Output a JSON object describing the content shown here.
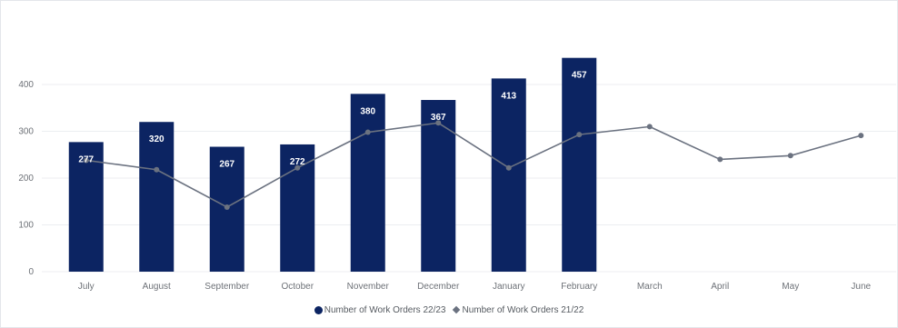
{
  "chart_data": {
    "type": "bar",
    "title": "",
    "categories": [
      "July",
      "August",
      "September",
      "October",
      "November",
      "December",
      "January",
      "February",
      "March",
      "April",
      "May",
      "June"
    ],
    "yticks": [
      0,
      100,
      200,
      300,
      400
    ],
    "ylim": [
      0,
      470
    ],
    "grid": true,
    "legend_position": "bottom",
    "series": [
      {
        "name": "Number of Work Orders 22/23",
        "kind": "bar",
        "color": "#0c2462",
        "values": [
          277,
          320,
          267,
          272,
          380,
          367,
          413,
          457,
          null,
          null,
          null,
          null
        ],
        "labels": [
          "277",
          "320",
          "267",
          "272",
          "380",
          "367",
          "413",
          "457",
          "",
          "",
          "",
          ""
        ]
      },
      {
        "name": "Number of Work Orders 21/22",
        "kind": "line",
        "color": "#6b7280",
        "values": [
          238,
          218,
          138,
          222,
          298,
          318,
          222,
          293,
          310,
          240,
          248,
          291
        ]
      }
    ]
  }
}
